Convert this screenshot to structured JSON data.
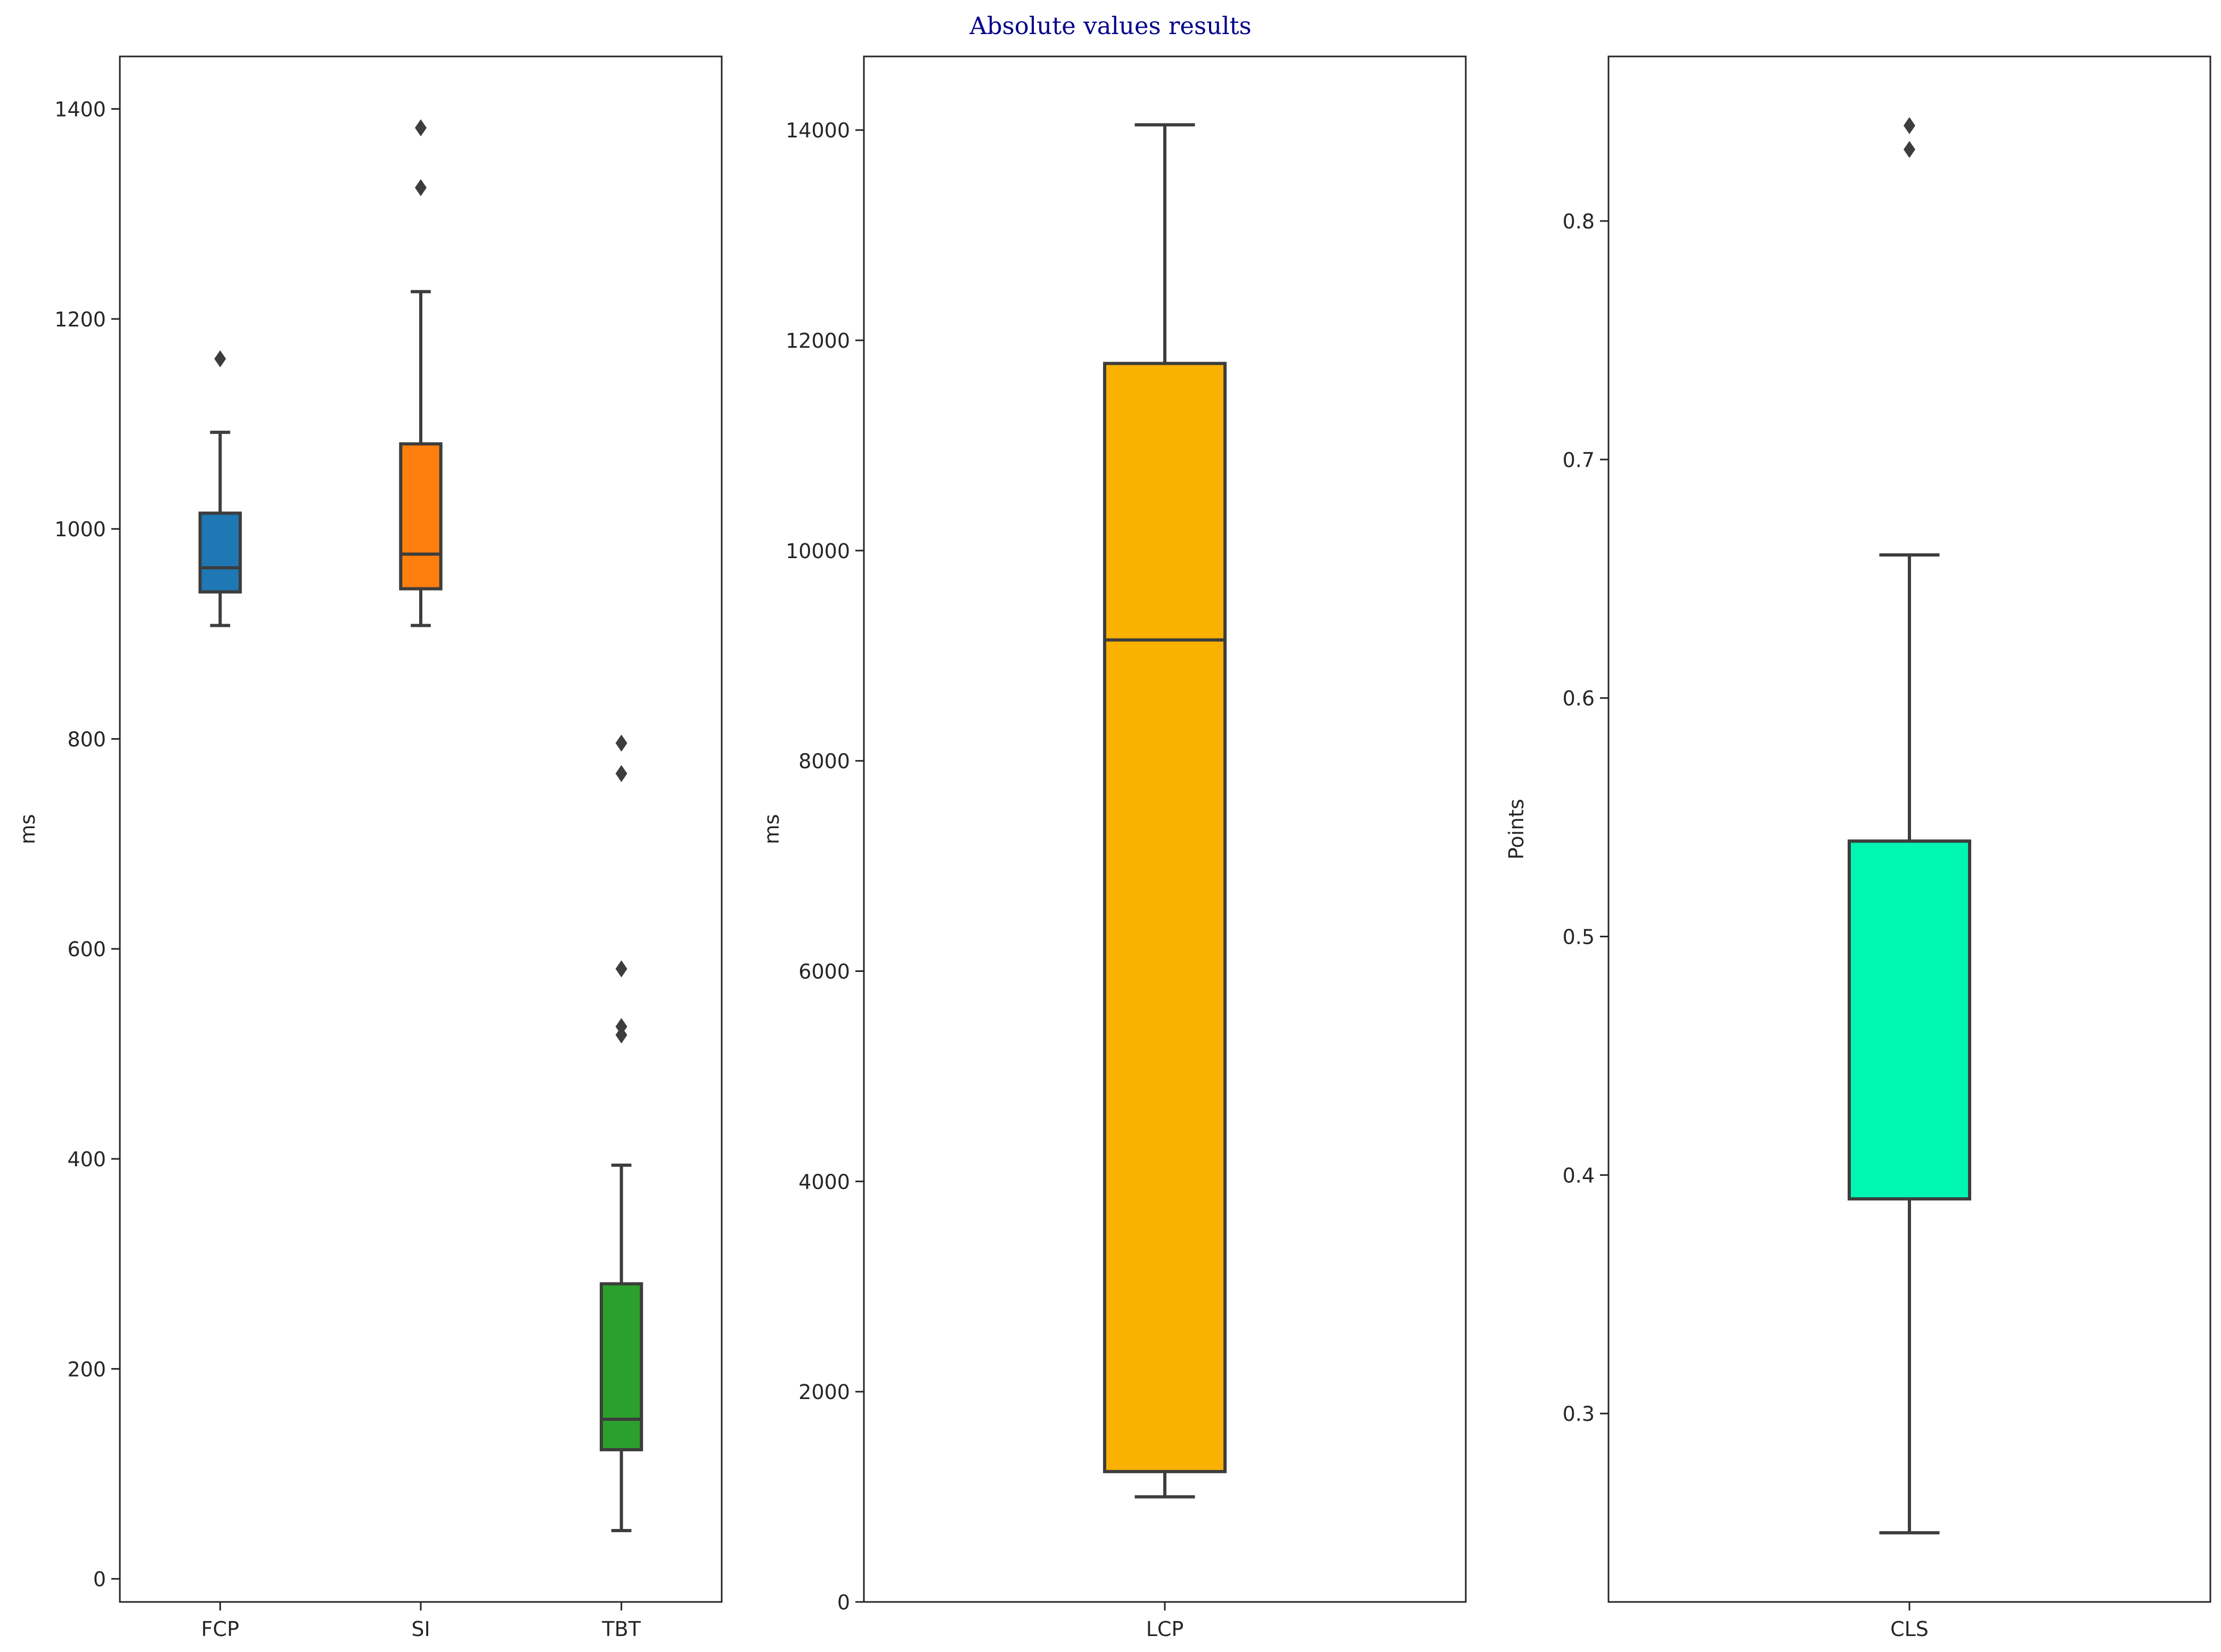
{
  "figure": {
    "title": "Absolute values results",
    "title_color": "#00008b"
  },
  "chart_data": [
    {
      "type": "box",
      "ylabel": "ms",
      "ylim": [
        -22,
        1450
      ],
      "yticks": [
        0,
        200,
        400,
        600,
        800,
        1000,
        1200,
        1400
      ],
      "tick_decimals": 0,
      "categories": [
        "FCP",
        "SI",
        "TBT"
      ],
      "boxes": [
        {
          "category": "FCP",
          "color": "#1f77b4",
          "whisker_low": 908,
          "q1": 940,
          "median": 963,
          "q3": 1015,
          "whisker_high": 1092,
          "outliers": [
            1162
          ]
        },
        {
          "category": "SI",
          "color": "#ff7f0e",
          "whisker_low": 908,
          "q1": 943,
          "median": 976,
          "q3": 1081,
          "whisker_high": 1226,
          "outliers": [
            1325,
            1382
          ]
        },
        {
          "category": "TBT",
          "color": "#2ca02c",
          "whisker_low": 46,
          "q1": 123,
          "median": 152,
          "q3": 281,
          "whisker_high": 394,
          "outliers": [
            518,
            526,
            581,
            767,
            796
          ]
        }
      ]
    },
    {
      "type": "box",
      "ylabel": "ms",
      "ylim": [
        0,
        14700
      ],
      "yticks": [
        0,
        2000,
        4000,
        6000,
        8000,
        10000,
        12000,
        14000
      ],
      "tick_decimals": 0,
      "categories": [
        "LCP"
      ],
      "boxes": [
        {
          "category": "LCP",
          "color": "#fbb102",
          "whisker_low": 1000,
          "q1": 1240,
          "median": 9150,
          "q3": 11780,
          "whisker_high": 14050,
          "outliers": []
        }
      ]
    },
    {
      "type": "box",
      "ylabel": "Points",
      "ylim": [
        0.221,
        0.869
      ],
      "yticks": [
        0.3,
        0.4,
        0.5,
        0.6,
        0.7,
        0.8
      ],
      "tick_decimals": 1,
      "categories": [
        "CLS"
      ],
      "boxes": [
        {
          "category": "CLS",
          "color": "#00f7b1",
          "whisker_low": 0.25,
          "q1": 0.39,
          "median": 0.54,
          "q3": 0.54,
          "whisker_high": 0.66,
          "outliers": [
            0.83,
            0.84
          ]
        }
      ]
    }
  ]
}
